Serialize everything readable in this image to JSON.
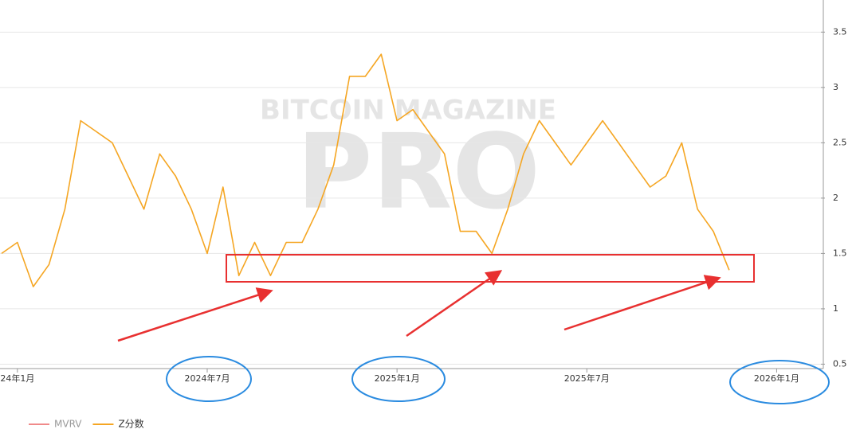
{
  "chart_data": {
    "type": "line",
    "watermark": [
      "BITCOIN MAGAZINE",
      "PRO"
    ],
    "x": [
      -0.5,
      0,
      0.5,
      1,
      1.5,
      2,
      2.5,
      3,
      3.5,
      4,
      4.5,
      5,
      5.5,
      6,
      6.5,
      7,
      7.5,
      8,
      8.5,
      9,
      9.5,
      10,
      10.5,
      11,
      11.5,
      12,
      12.5,
      13,
      13.5,
      14,
      14.5,
      15,
      15.5,
      16,
      16.5,
      17,
      17.5,
      18,
      18.5,
      19,
      19.5,
      20,
      20.5,
      21,
      21.5,
      22,
      22.5
    ],
    "series": [
      {
        "name": "MVRV",
        "color": "#f08a8a",
        "values": [
          null,
          null,
          null,
          null,
          null,
          null,
          null,
          null,
          null,
          null,
          null,
          null,
          null,
          null,
          null,
          null,
          null,
          null,
          null,
          null,
          null,
          null,
          null,
          null,
          null,
          null,
          null,
          null,
          null,
          null,
          null,
          null,
          null,
          null,
          null,
          null,
          null,
          null,
          null,
          null,
          null,
          null,
          null,
          null,
          null,
          null,
          null
        ]
      },
      {
        "name": "Z分数",
        "color": "#f5a623",
        "values": [
          1.5,
          1.6,
          1.2,
          1.4,
          1.9,
          2.7,
          2.6,
          2.5,
          2.2,
          1.9,
          2.4,
          2.2,
          1.9,
          1.5,
          2.1,
          1.3,
          1.6,
          1.3,
          1.6,
          1.6,
          1.9,
          2.3,
          3.1,
          3.1,
          3.3,
          2.7,
          2.8,
          2.6,
          2.4,
          1.7,
          1.7,
          1.5,
          1.9,
          2.4,
          2.7,
          2.5,
          2.3,
          2.5,
          2.7,
          2.5,
          2.3,
          2.1,
          2.2,
          2.5,
          1.9,
          1.7,
          1.35
        ]
      }
    ],
    "xlim": [
      -0.55,
      25.4
    ],
    "xticks": [
      {
        "value": 0,
        "label": "24年1月"
      },
      {
        "value": 6,
        "label": "2024年7月"
      },
      {
        "value": 12,
        "label": "2025年1月"
      },
      {
        "value": 18,
        "label": "2025年7月"
      },
      {
        "value": 24,
        "label": "2026年1月"
      }
    ],
    "ylim": [
      0.46,
      3.79
    ],
    "yticks": [
      0.5,
      1,
      1.5,
      2,
      2.5,
      3,
      3.5
    ],
    "grid": true
  }
}
